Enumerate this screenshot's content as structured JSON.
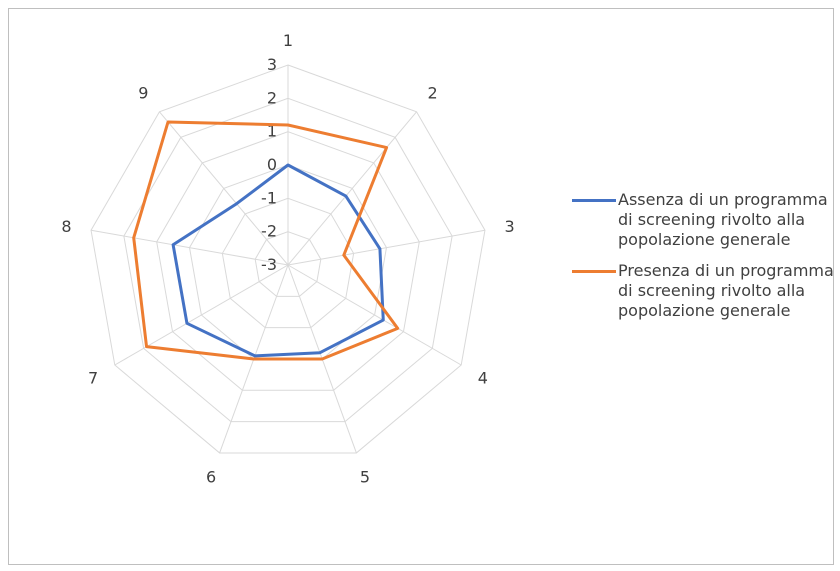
{
  "chart_data": {
    "type": "radar",
    "categories": [
      "1",
      "2",
      "3",
      "4",
      "5",
      "6",
      "7",
      "8",
      "9"
    ],
    "rlim": [
      -3,
      3
    ],
    "ticks": [
      -3,
      -2,
      -1,
      0,
      1,
      2,
      3
    ],
    "tick_labels": [
      "-3",
      "-2",
      "-1",
      "0",
      "1",
      "2",
      "3"
    ],
    "grid": true,
    "legend_position": "right",
    "series": [
      {
        "name": "Assenza di un programma di screening rivolto alla popolazione generale",
        "color": "#4472c4",
        "values": [
          0,
          -0.3,
          -0.2,
          0.3,
          -0.2,
          -0.1,
          0.5,
          0.5,
          -0.6
        ]
      },
      {
        "name": "Presenza di un programma di screening rivolto alla popolazione generale",
        "color": "#ed7d31",
        "values": [
          1.2,
          1.6,
          -1.3,
          0.8,
          0,
          0,
          1.9,
          1.7,
          2.6
        ]
      }
    ]
  }
}
